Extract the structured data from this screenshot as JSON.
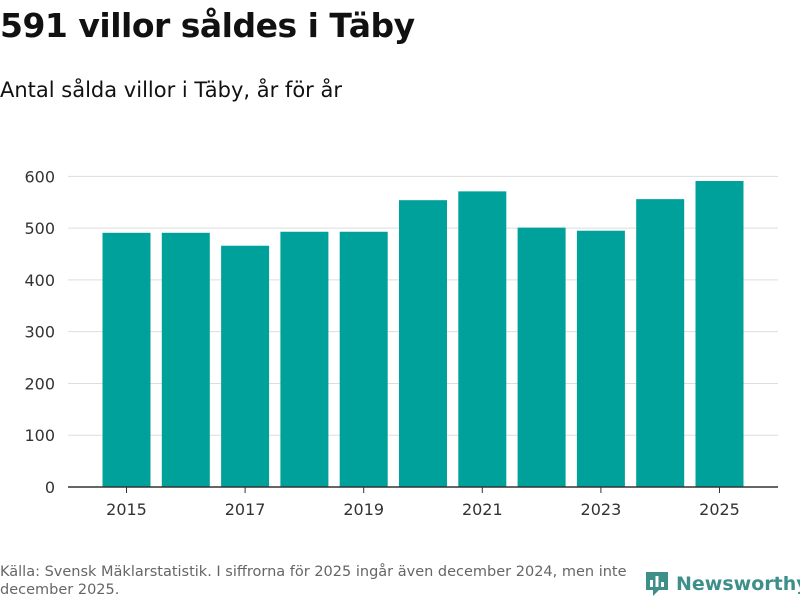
{
  "title": "591 villor såldes i Täby",
  "subtitle": "Antal sålda villor i Täby, år för år",
  "source": "Källa: Svensk Mäklarstatistik. I siffrorna för 2025 ingår även december 2024, men inte december 2025.",
  "brand": {
    "name": "Newsworthy",
    "color": "#3e8f8a"
  },
  "colors": {
    "bar": "#00a19a",
    "grid": "#dddddd",
    "axis": "#333333",
    "tick_text": "#333333"
  },
  "chart_data": {
    "type": "bar",
    "title": "591 villor såldes i Täby",
    "subtitle": "Antal sålda villor i Täby, år för år",
    "xlabel": "",
    "ylabel": "",
    "categories": [
      "2015",
      "2016",
      "2017",
      "2018",
      "2019",
      "2020",
      "2021",
      "2022",
      "2023",
      "2024",
      "2025"
    ],
    "values": [
      491,
      491,
      466,
      493,
      493,
      554,
      571,
      501,
      495,
      556,
      591
    ],
    "x_tick_labels": [
      "2015",
      "",
      "2017",
      "",
      "2019",
      "",
      "2021",
      "",
      "2023",
      "",
      "2025"
    ],
    "y_ticks": [
      0,
      100,
      200,
      300,
      400,
      500,
      600
    ],
    "ylim": [
      0,
      620
    ],
    "grid": true
  }
}
